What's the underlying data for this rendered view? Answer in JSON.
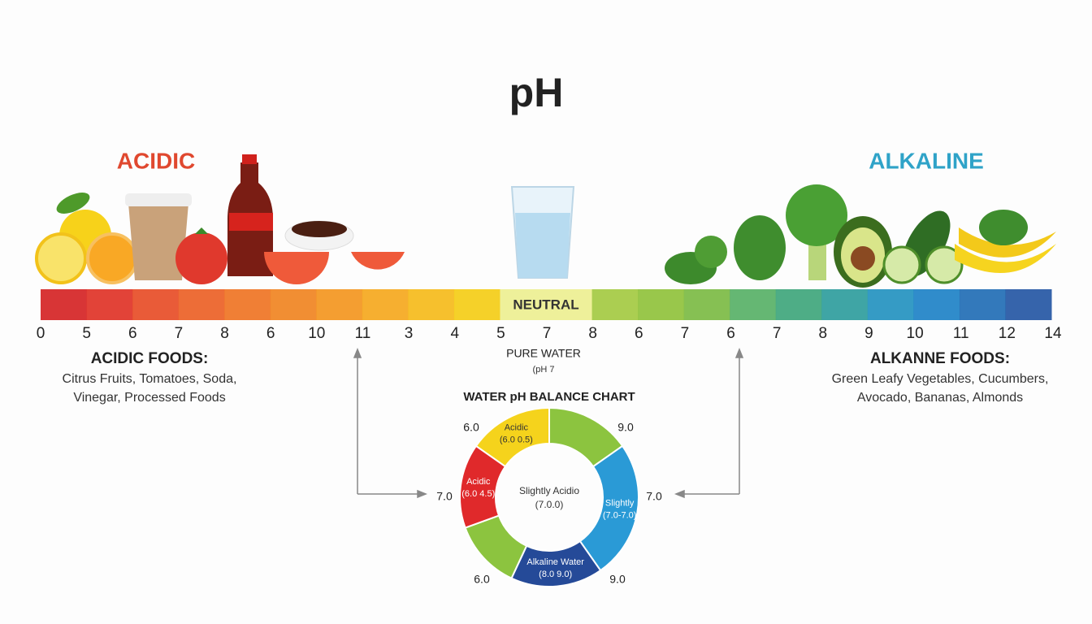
{
  "title": "pH",
  "acidic": "ACIDIC",
  "alkaline": "ALKALINE",
  "scale": {
    "labels": [
      "0",
      "5",
      "6",
      "7",
      "8",
      "6",
      "10",
      "11",
      "3",
      "4",
      "5",
      "7",
      "8",
      "6",
      "7",
      "6",
      "7",
      "8",
      "9",
      "10",
      "11",
      "12",
      "14"
    ],
    "colors": [
      "#d62a2b",
      "#e0392d",
      "#e8522d",
      "#ec652c",
      "#ef782a",
      "#f08828",
      "#f39926",
      "#f5ab25",
      "#f6bd22",
      "#f4cf1e",
      "#eef09a",
      "#eef09a",
      "#a7cb48",
      "#93c441",
      "#7fbd4a",
      "#5db36c",
      "#45a97f",
      "#35a0a0",
      "#2a96c2",
      "#2586c8",
      "#2872b7",
      "#2b5ca6"
    ],
    "neutral": "NEUTRAL"
  },
  "acidic_foods": {
    "heading": "ACIDIC FOODS:",
    "lines": [
      "Citrus Fruits, Tomatoes, Soda,",
      "Vinegar, Processed Foods"
    ]
  },
  "alkaline_foods": {
    "heading": "ALKANNE FOODS:",
    "lines": [
      "Green Leafy Vegetables, Cucumbers,",
      "Avocado, Bananas, Almonds"
    ]
  },
  "pure_water": {
    "heading": "PURE WATER",
    "note": "(pH 7"
  },
  "donut": {
    "title": "WATER pH BALANCE CHART",
    "center": [
      "Slightly Acidio",
      "(7.0.0)"
    ],
    "segments": [
      {
        "color": "#f5d31c",
        "label": [
          "Acidic",
          "(6.0 0.5)"
        ]
      },
      {
        "color": "#8cc43f"
      },
      {
        "color": "#2a9ad6",
        "label": [
          "Slightly",
          "(7.0-7.0)"
        ]
      },
      {
        "color": "#254a98",
        "label": [
          "Alkaline Water",
          "(8.0 9.0)"
        ]
      },
      {
        "color": "#8cc43f"
      },
      {
        "color": "#e0292b",
        "label": [
          "Acidic",
          "(6.0 4.5)"
        ]
      }
    ],
    "outer_labels": [
      "6.0",
      "9.0",
      "7.0",
      "7.0",
      "6.0",
      "9.0"
    ]
  }
}
